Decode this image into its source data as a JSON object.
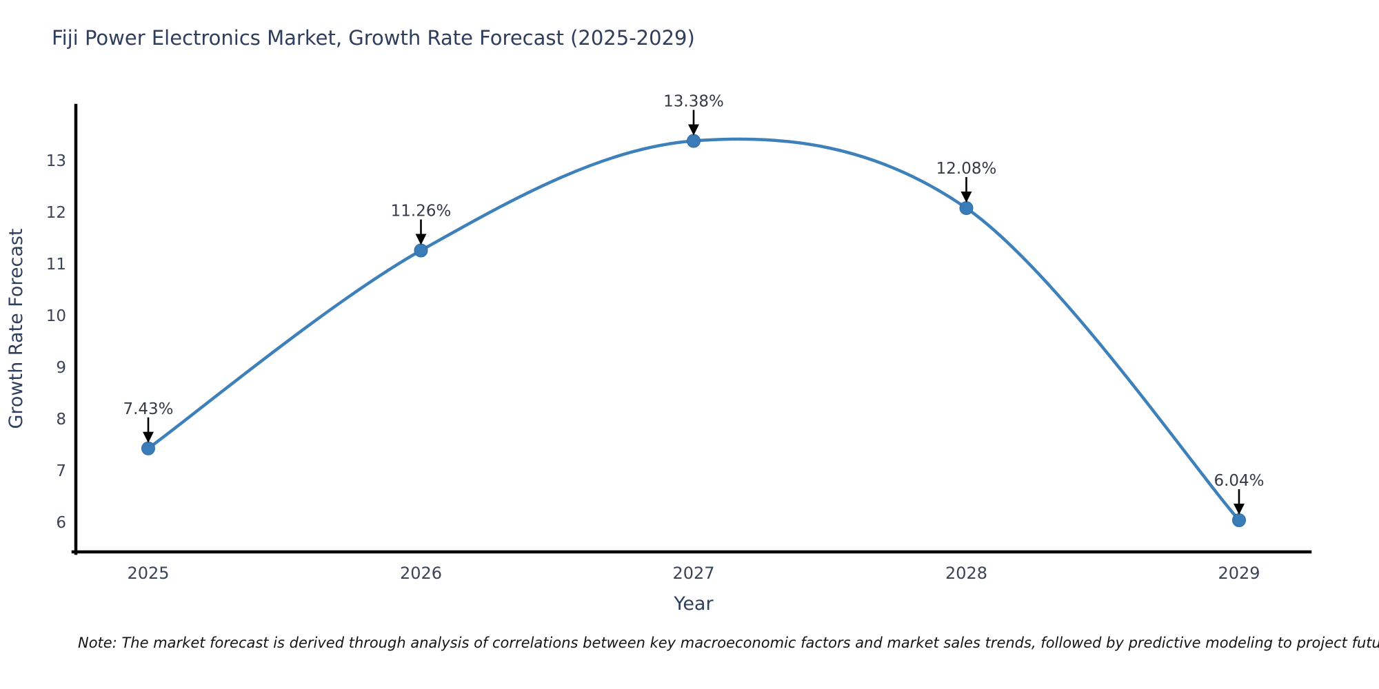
{
  "note": "Note: The market forecast is derived through analysis of correlations between key macroeconomic factors and market sales trends, followed by predictive modeling to project future sales",
  "chart_data": {
    "type": "line",
    "title": "Fiji Power Electronics Market, Growth Rate Forecast (2025-2029)",
    "xlabel": "Year",
    "ylabel": "Growth Rate Forecast",
    "x": [
      2025,
      2026,
      2027,
      2028,
      2029
    ],
    "categories": [
      "2025",
      "2026",
      "2027",
      "2028",
      "2029"
    ],
    "values": [
      7.43,
      11.26,
      13.38,
      12.08,
      6.04
    ],
    "point_labels": [
      "7.43%",
      "11.26%",
      "13.38%",
      "12.08%",
      "6.04%"
    ],
    "y_ticks": [
      6,
      7,
      8,
      9,
      10,
      11,
      12,
      13
    ],
    "ylim": [
      5.43,
      14.07
    ],
    "grid": false,
    "legend_position": "none",
    "curve_style": "smooth-spline",
    "annotation_style": "value-label-with-down-arrow",
    "line_color": "#3d80ba",
    "marker_color": "#3a7cb8",
    "marker_edge_color": "#2f6ba3",
    "arrow_color": "#000000",
    "spine_color": "#000000",
    "background_color": "#ffffff"
  }
}
